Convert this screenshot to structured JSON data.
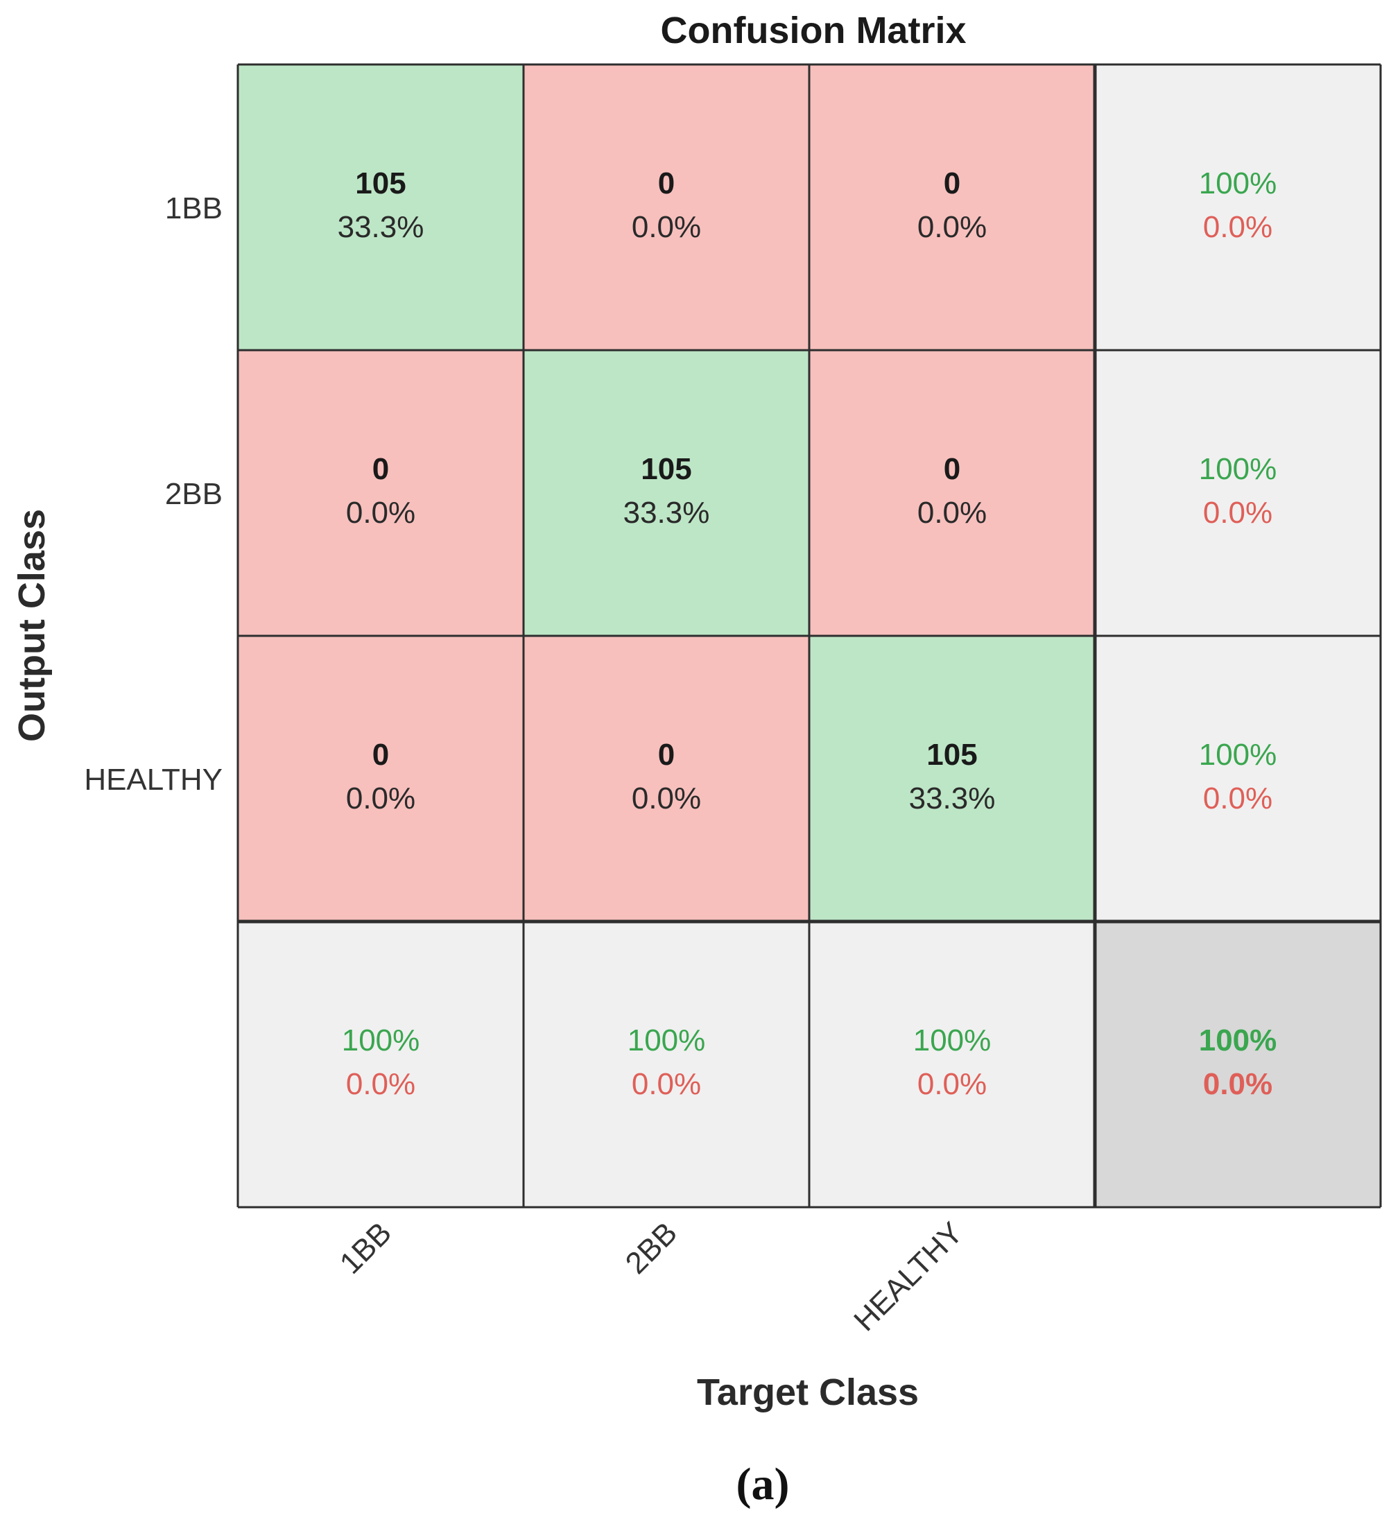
{
  "chart_data": {
    "type": "heatmap",
    "title": "Confusion Matrix",
    "xlabel": "Target Class",
    "ylabel": "Output Class",
    "classes": [
      "1BB",
      "2BB",
      "HEALTHY"
    ],
    "matrix": [
      {
        "row": "1BB",
        "cells": [
          {
            "count": "105",
            "pct": "33.3%"
          },
          {
            "count": "0",
            "pct": "0.0%"
          },
          {
            "count": "0",
            "pct": "0.0%"
          }
        ],
        "summary": {
          "correct": "100%",
          "incorrect": "0.0%"
        }
      },
      {
        "row": "2BB",
        "cells": [
          {
            "count": "0",
            "pct": "0.0%"
          },
          {
            "count": "105",
            "pct": "33.3%"
          },
          {
            "count": "0",
            "pct": "0.0%"
          }
        ],
        "summary": {
          "correct": "100%",
          "incorrect": "0.0%"
        }
      },
      {
        "row": "HEALTHY",
        "cells": [
          {
            "count": "0",
            "pct": "0.0%"
          },
          {
            "count": "0",
            "pct": "0.0%"
          },
          {
            "count": "105",
            "pct": "33.3%"
          }
        ],
        "summary": {
          "correct": "100%",
          "incorrect": "0.0%"
        }
      }
    ],
    "column_summary": [
      {
        "correct": "100%",
        "incorrect": "0.0%"
      },
      {
        "correct": "100%",
        "incorrect": "0.0%"
      },
      {
        "correct": "100%",
        "incorrect": "0.0%"
      }
    ],
    "overall": {
      "correct": "100%",
      "incorrect": "0.0%"
    }
  },
  "caption": "(a)",
  "colors": {
    "correct_cell": "#bde6c6",
    "incorrect_cell": "#f7c0bd",
    "summary_cell": "#f0f0f0",
    "overall_cell": "#d8d8d8",
    "green_text": "#3aa64f",
    "red_text": "#df5f58",
    "grid_line": "#2e2e2e",
    "count_text": "#1a1a1a"
  }
}
